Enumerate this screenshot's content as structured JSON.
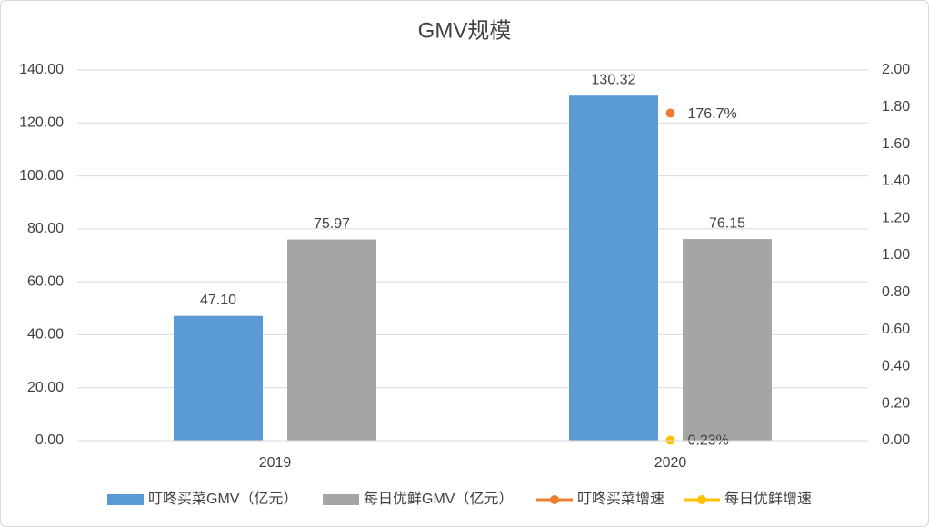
{
  "chart_data": {
    "type": "bar_line",
    "title": "GMV规模",
    "categories": [
      "2019",
      "2020"
    ],
    "series": [
      {
        "name": "叮咚买菜GMV（亿元）",
        "type": "bar",
        "color": "#5b9bd5",
        "values": [
          47.1,
          130.32
        ],
        "value_labels": [
          "47.10",
          "130.32"
        ]
      },
      {
        "name": "每日优鲜GMV（亿元）",
        "type": "bar",
        "color": "#a5a5a5",
        "values": [
          75.97,
          76.15
        ],
        "value_labels": [
          "75.97",
          "76.15"
        ]
      },
      {
        "name": "叮咚买菜增速",
        "type": "line",
        "axis": "y2",
        "color": "#ed7d31",
        "values": [
          null,
          1.767
        ],
        "value_labels": [
          null,
          "176.7%"
        ]
      },
      {
        "name": "每日优鲜增速",
        "type": "line",
        "axis": "y2",
        "color": "#ffc000",
        "values": [
          null,
          0.0023
        ],
        "value_labels": [
          null,
          "0.23%"
        ]
      }
    ],
    "ylim": [
      0,
      140
    ],
    "yticks": [
      {
        "value": 0,
        "label": "0.00"
      },
      {
        "value": 20,
        "label": "20.00"
      },
      {
        "value": 40,
        "label": "40.00"
      },
      {
        "value": 60,
        "label": "60.00"
      },
      {
        "value": 80,
        "label": "80.00"
      },
      {
        "value": 100,
        "label": "100.00"
      },
      {
        "value": 120,
        "label": "120.00"
      },
      {
        "value": 140,
        "label": "140.00"
      }
    ],
    "y2lim": [
      0,
      2
    ],
    "y2ticks": [
      {
        "value": 0,
        "label": "0.00"
      },
      {
        "value": 0.2,
        "label": "0.20"
      },
      {
        "value": 0.4,
        "label": "0.40"
      },
      {
        "value": 0.6,
        "label": "0.60"
      },
      {
        "value": 0.8,
        "label": "0.80"
      },
      {
        "value": 1,
        "label": "1.00"
      },
      {
        "value": 1.2,
        "label": "1.20"
      },
      {
        "value": 1.4,
        "label": "1.40"
      },
      {
        "value": 1.6,
        "label": "1.60"
      },
      {
        "value": 1.8,
        "label": "1.80"
      },
      {
        "value": 2,
        "label": "2.00"
      }
    ],
    "grid": true
  }
}
